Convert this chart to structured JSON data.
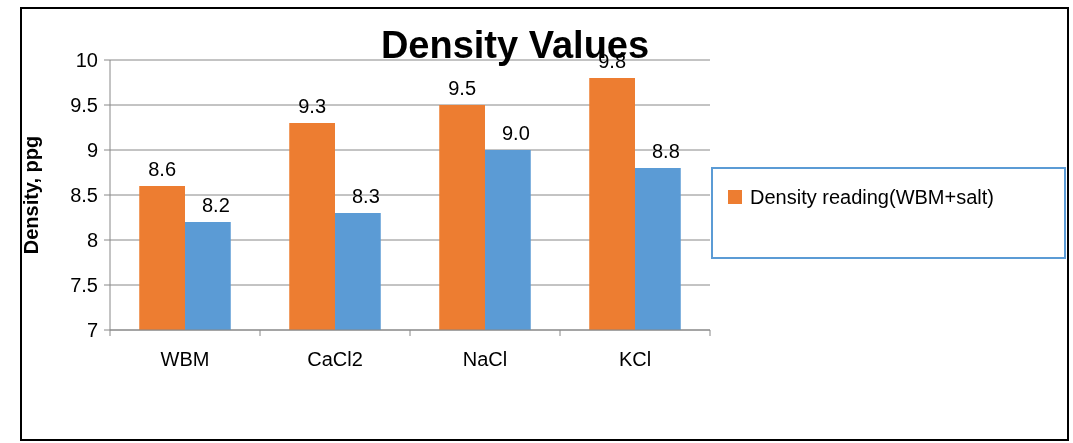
{
  "chart_data": {
    "type": "bar",
    "title": "Density Values",
    "ylabel": "Density, ppg",
    "categories": [
      "WBM",
      "CaCl2",
      "NaCl",
      "KCl"
    ],
    "series": [
      {
        "name": "Density reading(WBM+salt)",
        "color": "#ed7d31",
        "values": [
          8.6,
          9.3,
          9.5,
          9.8
        ],
        "value_labels": [
          "8.6",
          "9.3",
          "9.5",
          "9.8"
        ]
      },
      {
        "color": "#5b9bd5",
        "values": [
          8.2,
          8.3,
          9.0,
          8.8
        ],
        "value_labels": [
          "8.2",
          "8.3",
          "9.0",
          "8.8"
        ]
      }
    ],
    "ylim": [
      7,
      10
    ],
    "yticks": [
      7,
      7.5,
      8,
      8.5,
      9,
      9.5,
      10
    ],
    "grid": "y",
    "legend": "right"
  }
}
